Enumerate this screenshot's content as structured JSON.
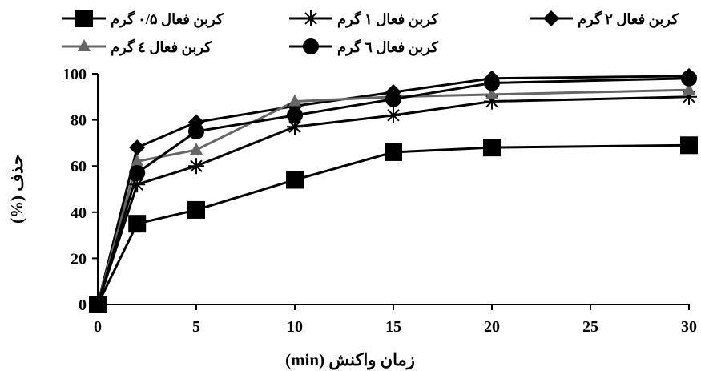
{
  "chart_data": {
    "type": "line",
    "title": "",
    "xlabel": "زمان واکنش (min)",
    "ylabel": "حذف (%)",
    "xlim": [
      0,
      30
    ],
    "ylim": [
      0,
      100
    ],
    "x_ticks": [
      "0",
      "5",
      "10",
      "15",
      "20",
      "25",
      "30"
    ],
    "y_ticks": [
      "0",
      "20",
      "40",
      "60",
      "80",
      "100"
    ],
    "x": [
      0,
      2,
      5,
      10,
      15,
      20,
      30
    ],
    "grid": false,
    "legend_position": "top",
    "series": [
      {
        "name": "کربن فعال ۰/۵ گرم",
        "marker": "square",
        "color": "#000000",
        "values": [
          0,
          35,
          41,
          54,
          66,
          68,
          69
        ]
      },
      {
        "name": "کربن فعال ۱ گرم",
        "marker": "star",
        "color": "#000000",
        "values": [
          0,
          52,
          60,
          77,
          82,
          88,
          90
        ]
      },
      {
        "name": "کربن فعال ۲ گرم",
        "marker": "diamond",
        "color": "#000000",
        "values": [
          0,
          68,
          79,
          86,
          92,
          98,
          99
        ]
      },
      {
        "name": "کربن فعال ٤ گرم",
        "marker": "triangle",
        "color": "#666666",
        "values": [
          0,
          62,
          67,
          88,
          90,
          91,
          93
        ]
      },
      {
        "name": "کربن فعال ٦ گرم",
        "marker": "circle",
        "color": "#000000",
        "values": [
          0,
          57,
          75,
          82,
          89,
          96,
          98
        ]
      }
    ]
  }
}
